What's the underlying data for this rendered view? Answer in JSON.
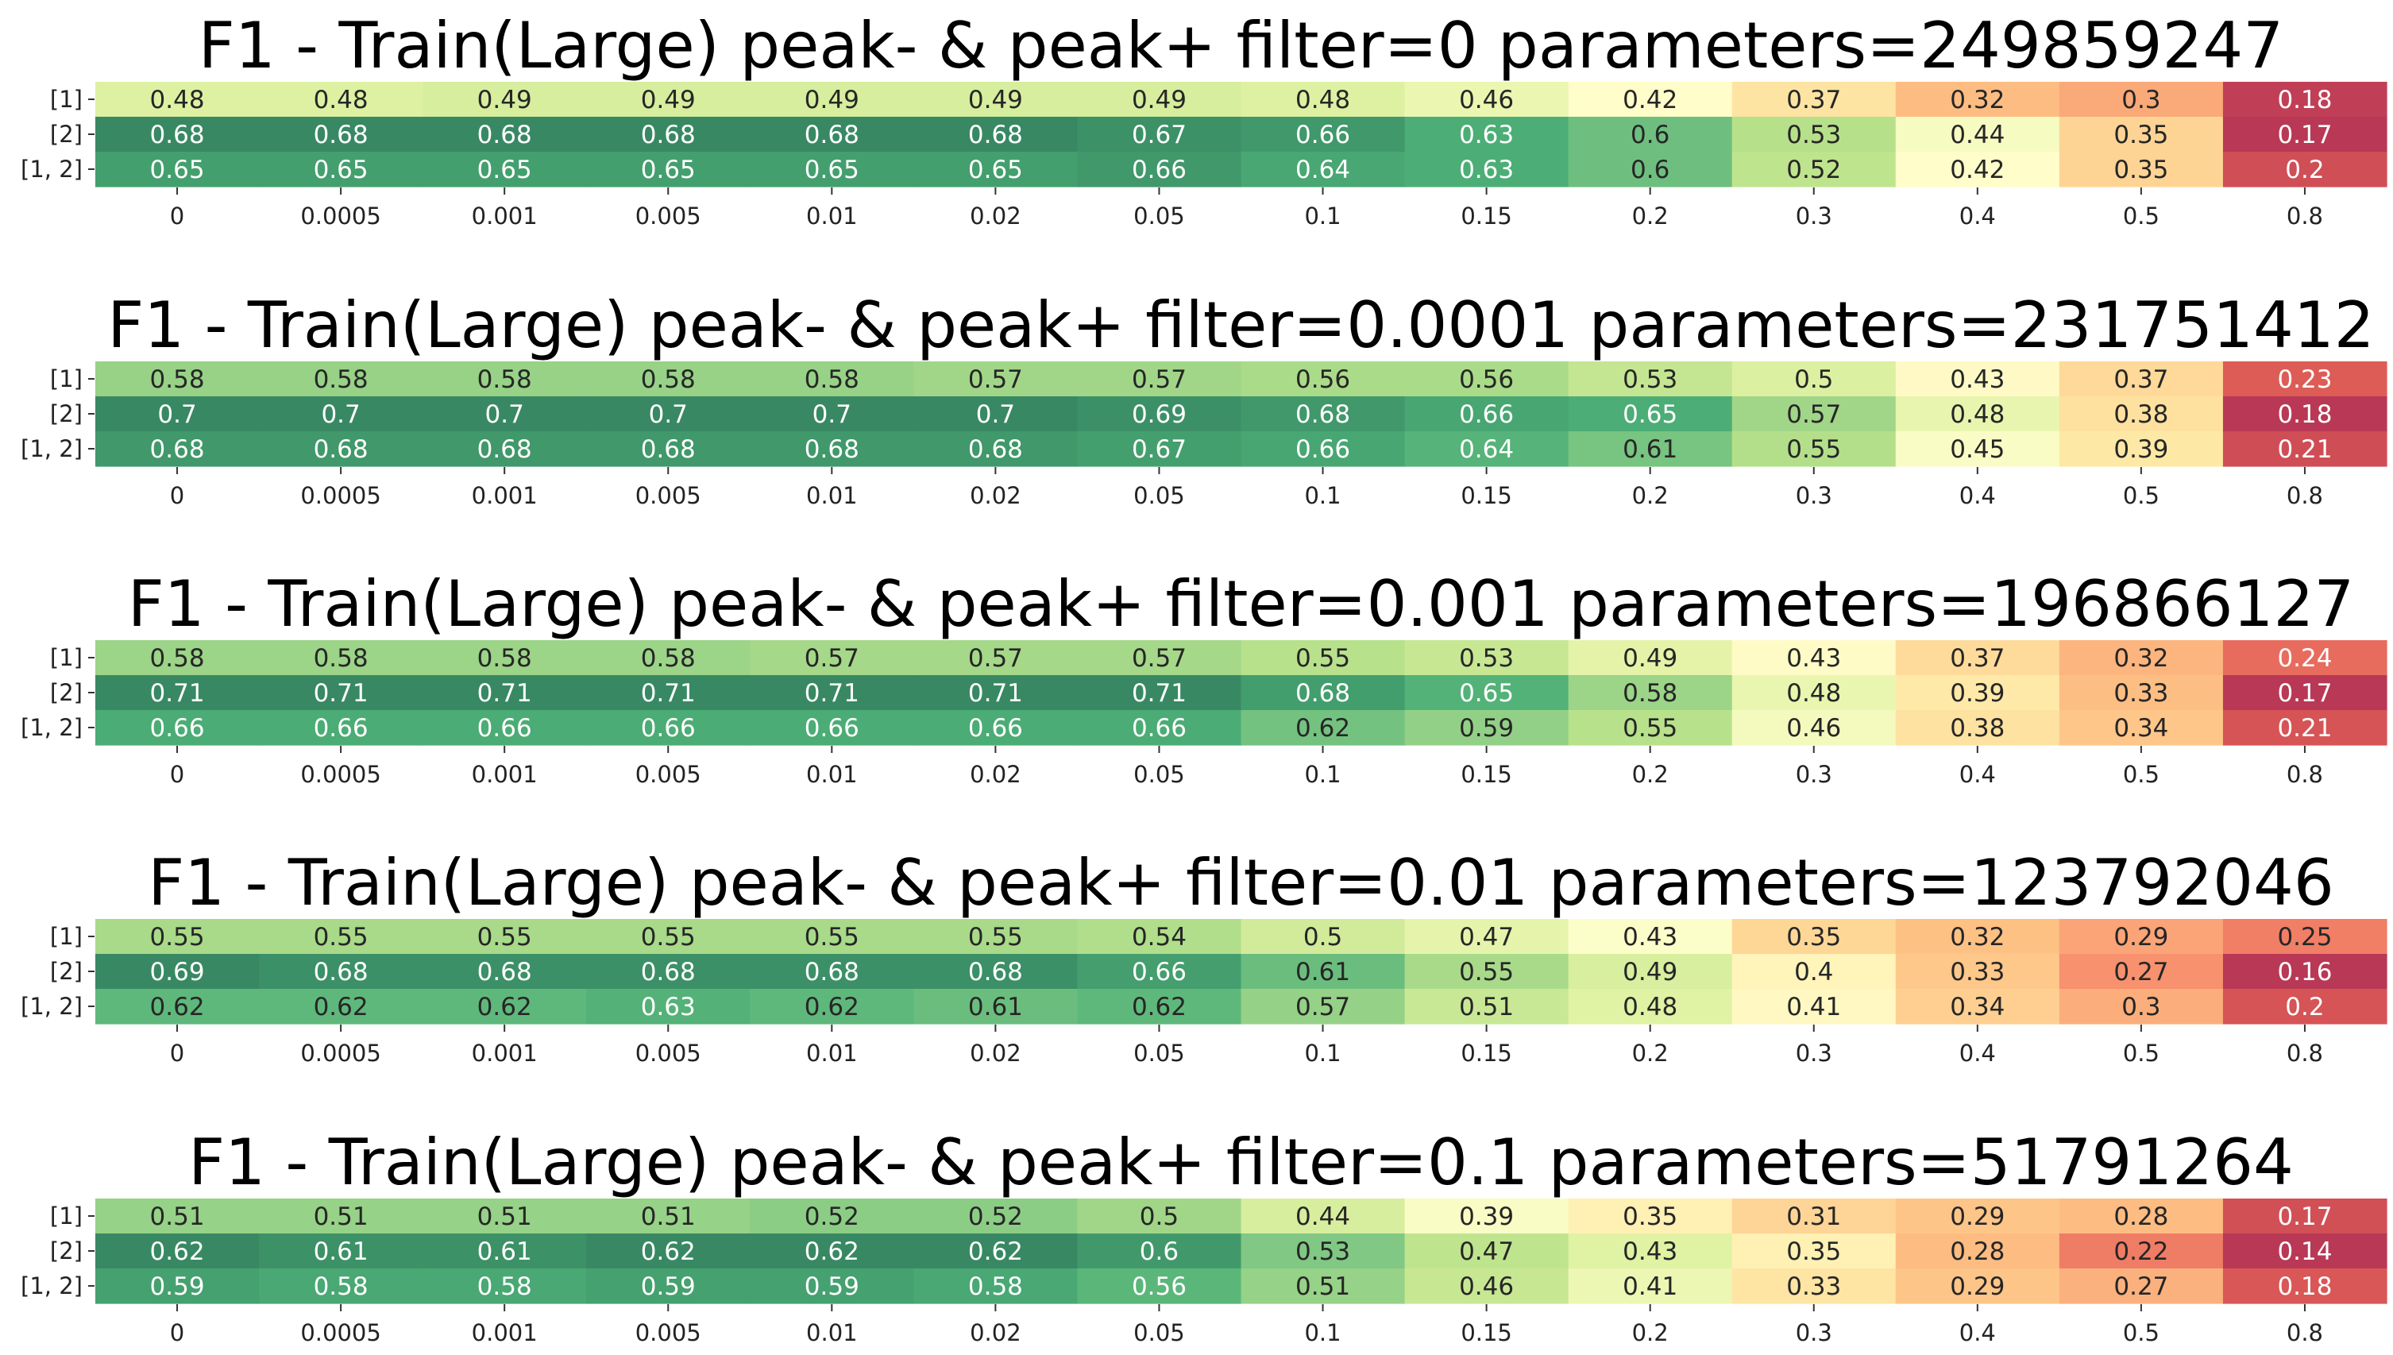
{
  "chart_data": [
    {
      "type": "heatmap",
      "title": "F1 - Train(Large) peak- & peak+ filter=0 parameters=249859247",
      "rows": [
        "[1]",
        "[2]",
        "[1, 2]"
      ],
      "columns": [
        "0",
        "0.0005",
        "0.001",
        "0.005",
        "0.01",
        "0.02",
        "0.05",
        "0.1",
        "0.15",
        "0.2",
        "0.3",
        "0.4",
        "0.5",
        "0.8"
      ],
      "values": [
        [
          0.48,
          0.48,
          0.49,
          0.49,
          0.49,
          0.49,
          0.49,
          0.48,
          0.46,
          0.42,
          0.37,
          0.32,
          0.3,
          0.18
        ],
        [
          0.68,
          0.68,
          0.68,
          0.68,
          0.68,
          0.68,
          0.67,
          0.66,
          0.63,
          0.6,
          0.53,
          0.44,
          0.35,
          0.17
        ],
        [
          0.65,
          0.65,
          0.65,
          0.65,
          0.65,
          0.65,
          0.66,
          0.64,
          0.63,
          0.6,
          0.52,
          0.42,
          0.35,
          0.2
        ]
      ]
    },
    {
      "type": "heatmap",
      "title": "F1 - Train(Large) peak- & peak+ filter=0.0001 parameters=231751412",
      "rows": [
        "[1]",
        "[2]",
        "[1, 2]"
      ],
      "columns": [
        "0",
        "0.0005",
        "0.001",
        "0.005",
        "0.01",
        "0.02",
        "0.05",
        "0.1",
        "0.15",
        "0.2",
        "0.3",
        "0.4",
        "0.5",
        "0.8"
      ],
      "values": [
        [
          0.58,
          0.58,
          0.58,
          0.58,
          0.58,
          0.57,
          0.57,
          0.56,
          0.56,
          0.53,
          0.5,
          0.43,
          0.37,
          0.23
        ],
        [
          0.7,
          0.7,
          0.7,
          0.7,
          0.7,
          0.7,
          0.69,
          0.68,
          0.66,
          0.65,
          0.57,
          0.48,
          0.38,
          0.18
        ],
        [
          0.68,
          0.68,
          0.68,
          0.68,
          0.68,
          0.68,
          0.67,
          0.66,
          0.64,
          0.61,
          0.55,
          0.45,
          0.39,
          0.21
        ]
      ]
    },
    {
      "type": "heatmap",
      "title": "F1 - Train(Large) peak- & peak+ filter=0.001 parameters=196866127",
      "rows": [
        "[1]",
        "[2]",
        "[1, 2]"
      ],
      "columns": [
        "0",
        "0.0005",
        "0.001",
        "0.005",
        "0.01",
        "0.02",
        "0.05",
        "0.1",
        "0.15",
        "0.2",
        "0.3",
        "0.4",
        "0.5",
        "0.8"
      ],
      "values": [
        [
          0.58,
          0.58,
          0.58,
          0.58,
          0.57,
          0.57,
          0.57,
          0.55,
          0.53,
          0.49,
          0.43,
          0.37,
          0.32,
          0.24
        ],
        [
          0.71,
          0.71,
          0.71,
          0.71,
          0.71,
          0.71,
          0.71,
          0.68,
          0.65,
          0.58,
          0.48,
          0.39,
          0.33,
          0.17
        ],
        [
          0.66,
          0.66,
          0.66,
          0.66,
          0.66,
          0.66,
          0.66,
          0.62,
          0.59,
          0.55,
          0.46,
          0.38,
          0.34,
          0.21
        ]
      ]
    },
    {
      "type": "heatmap",
      "title": "F1 - Train(Large) peak- & peak+ filter=0.01 parameters=123792046",
      "rows": [
        "[1]",
        "[2]",
        "[1, 2]"
      ],
      "columns": [
        "0",
        "0.0005",
        "0.001",
        "0.005",
        "0.01",
        "0.02",
        "0.05",
        "0.1",
        "0.15",
        "0.2",
        "0.3",
        "0.4",
        "0.5",
        "0.8"
      ],
      "values": [
        [
          0.55,
          0.55,
          0.55,
          0.55,
          0.55,
          0.55,
          0.54,
          0.5,
          0.47,
          0.43,
          0.35,
          0.32,
          0.29,
          0.25
        ],
        [
          0.69,
          0.68,
          0.68,
          0.68,
          0.68,
          0.68,
          0.66,
          0.61,
          0.55,
          0.49,
          0.4,
          0.33,
          0.27,
          0.16
        ],
        [
          0.62,
          0.62,
          0.62,
          0.63,
          0.62,
          0.61,
          0.62,
          0.57,
          0.51,
          0.48,
          0.41,
          0.34,
          0.3,
          0.2
        ]
      ]
    },
    {
      "type": "heatmap",
      "title": "F1 - Train(Large) peak- & peak+ filter=0.1 parameters=51791264",
      "rows": [
        "[1]",
        "[2]",
        "[1, 2]"
      ],
      "columns": [
        "0",
        "0.0005",
        "0.001",
        "0.005",
        "0.01",
        "0.02",
        "0.05",
        "0.1",
        "0.15",
        "0.2",
        "0.3",
        "0.4",
        "0.5",
        "0.8"
      ],
      "values": [
        [
          0.51,
          0.51,
          0.51,
          0.51,
          0.52,
          0.52,
          0.5,
          0.44,
          0.39,
          0.35,
          0.31,
          0.29,
          0.28,
          0.17
        ],
        [
          0.62,
          0.61,
          0.61,
          0.62,
          0.62,
          0.62,
          0.6,
          0.53,
          0.47,
          0.43,
          0.35,
          0.28,
          0.22,
          0.14
        ],
        [
          0.59,
          0.58,
          0.58,
          0.59,
          0.59,
          0.58,
          0.56,
          0.51,
          0.46,
          0.41,
          0.33,
          0.29,
          0.27,
          0.18
        ]
      ]
    }
  ]
}
